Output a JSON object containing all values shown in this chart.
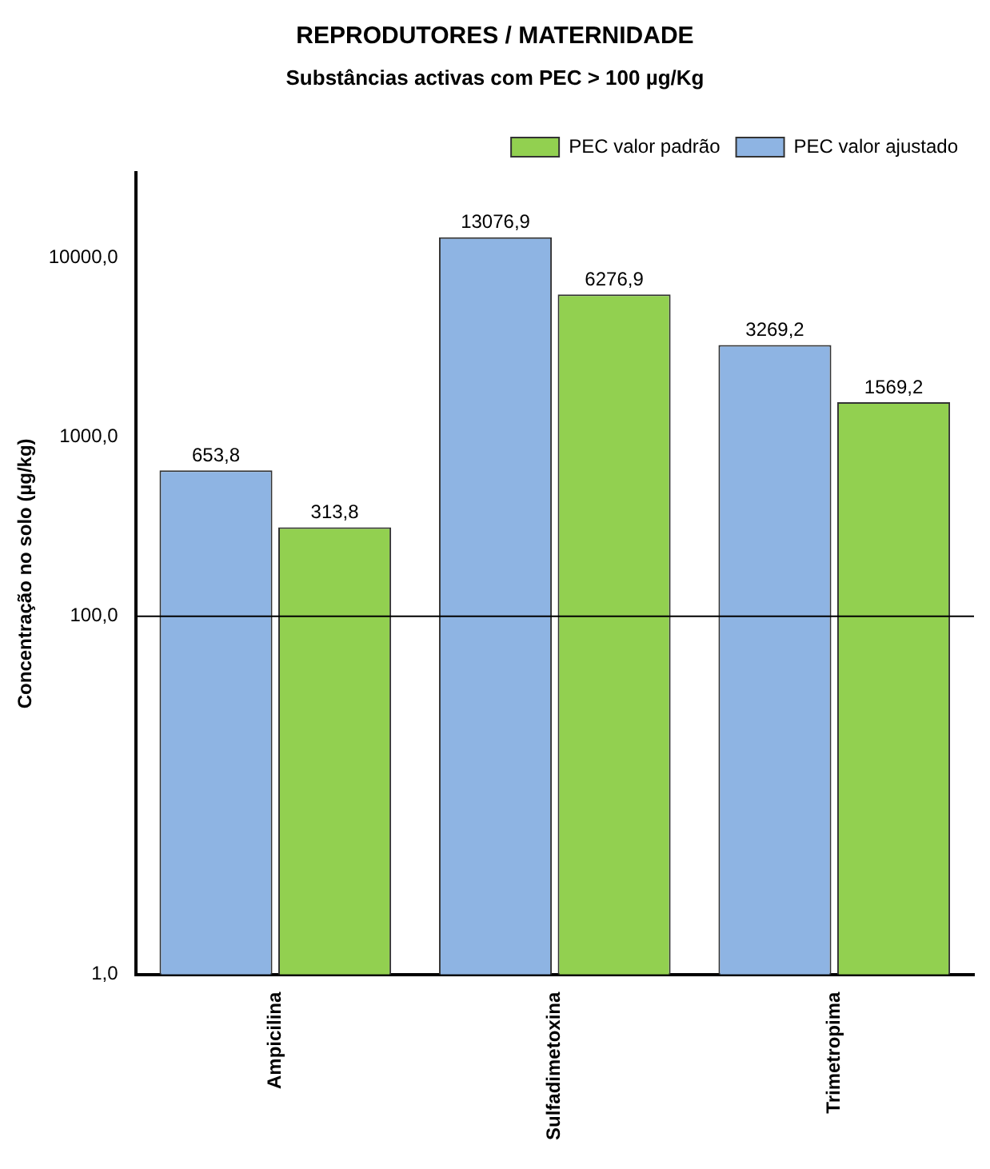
{
  "chart_data": {
    "type": "bar",
    "title": "REPRODUTORES / MATERNIDADE",
    "subtitle": "Substâncias activas com PEC > 100 µg/Kg",
    "ylabel": "Concentração no solo (µg/kg)",
    "categories": [
      "Ampicilina",
      "Sulfadimetoxina",
      "Trimetropima"
    ],
    "series": [
      {
        "name": "PEC valor ajustado",
        "color": "#8eb4e3",
        "values": [
          653.8,
          13076.9,
          3269.2
        ],
        "value_labels": [
          "653,8",
          "13076,9",
          "3269,2"
        ]
      },
      {
        "name": "PEC valor padrão",
        "color": "#92d050",
        "values": [
          313.8,
          6276.9,
          1569.2
        ],
        "value_labels": [
          "313,8",
          "6276,9",
          "1569,2"
        ]
      }
    ],
    "log": true,
    "ylim": [
      1,
      30000
    ],
    "yticks": [
      {
        "value": 1,
        "label": "1,0"
      },
      {
        "value": 100,
        "label": "100,0"
      },
      {
        "value": 1000,
        "label": "1000,0"
      },
      {
        "value": 10000,
        "label": "10000,0"
      }
    ],
    "ref_lines": [
      {
        "axis": "y",
        "value": 100,
        "color": "#000000"
      }
    ],
    "grid": false,
    "legend": "top right"
  }
}
